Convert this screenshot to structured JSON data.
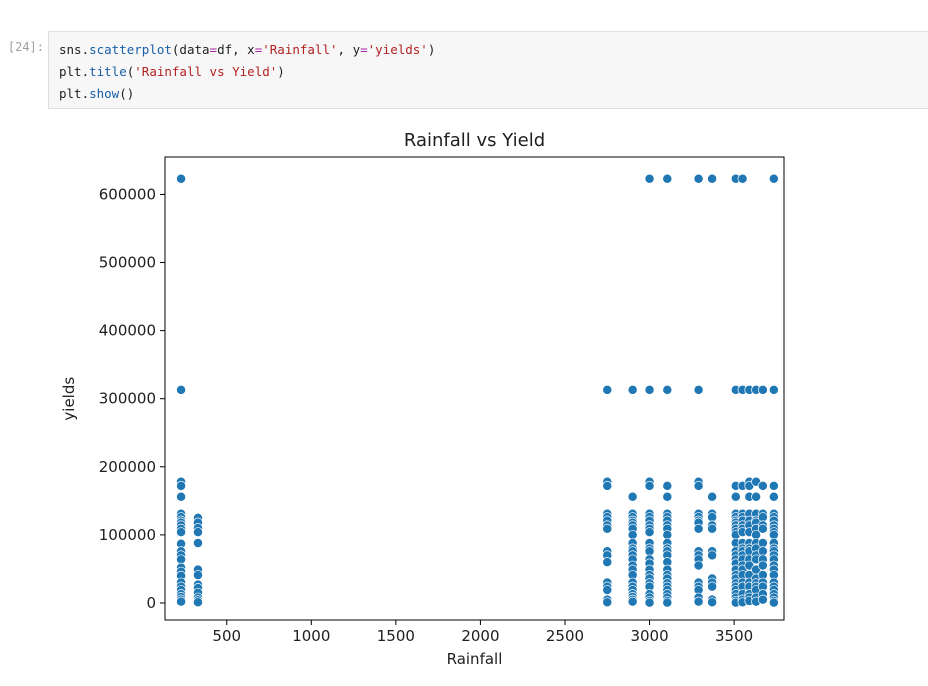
{
  "notebook": {
    "prompt": "[24]:",
    "code_lines": [
      [
        {
          "t": "sns.",
          "c": "plain"
        },
        {
          "t": "scatterplot",
          "c": "fn"
        },
        {
          "t": "(data",
          "c": "plain"
        },
        {
          "t": "=",
          "c": "op"
        },
        {
          "t": "df, x",
          "c": "plain"
        },
        {
          "t": "=",
          "c": "op"
        },
        {
          "t": "'Rainfall'",
          "c": "str"
        },
        {
          "t": ", y",
          "c": "plain"
        },
        {
          "t": "=",
          "c": "op"
        },
        {
          "t": "'yields'",
          "c": "str"
        },
        {
          "t": ")",
          "c": "plain"
        }
      ],
      [
        {
          "t": "plt.",
          "c": "plain"
        },
        {
          "t": "title",
          "c": "fn"
        },
        {
          "t": "(",
          "c": "plain"
        },
        {
          "t": "'Rainfall vs Yield'",
          "c": "str"
        },
        {
          "t": ")",
          "c": "plain"
        }
      ],
      [
        {
          "t": "plt.",
          "c": "plain"
        },
        {
          "t": "show",
          "c": "fn"
        },
        {
          "t": "()",
          "c": "plain"
        }
      ]
    ],
    "colors": {
      "cell_background": "#f7f7f7",
      "function": "#1a5fa8",
      "string": "#b22222",
      "operator": "#a626a4",
      "marker": "#1f77b4"
    }
  },
  "chart_data": {
    "type": "scatter",
    "title": "Rainfall vs Yield",
    "xlabel": "Rainfall",
    "ylabel": "yields",
    "xlim": [
      135,
      3795
    ],
    "ylim": [
      -25000,
      655000
    ],
    "xticks": [
      500,
      1000,
      1500,
      2000,
      2500,
      3000,
      3500
    ],
    "yticks": [
      0,
      100000,
      200000,
      300000,
      400000,
      500000,
      600000
    ],
    "grid": false,
    "legend": "none",
    "clusters": [
      {
        "x": 230,
        "ys": [
          623000,
          313000,
          178000,
          172000,
          156000,
          131000,
          126000,
          121000,
          118000,
          114000,
          109000,
          104000,
          87000,
          76000,
          70000,
          64000,
          52000,
          46000,
          40000,
          30000,
          24000,
          19000,
          13000,
          9000,
          5000,
          2000
        ]
      },
      {
        "x": 330,
        "ys": [
          125000,
          118000,
          110000,
          104000,
          88000,
          49000,
          41000,
          27000,
          22000,
          15000,
          8000,
          4000,
          1000
        ]
      },
      {
        "x": 2750,
        "ys": [
          313000,
          178000,
          172000,
          131000,
          126000,
          121000,
          114000,
          109000,
          76000,
          70000,
          60000,
          30000,
          24000,
          19000,
          5000,
          1000
        ]
      },
      {
        "x": 2900,
        "ys": [
          313000,
          156000,
          131000,
          126000,
          121000,
          118000,
          114000,
          109000,
          100000,
          88000,
          80000,
          76000,
          70000,
          64000,
          55000,
          49000,
          41000,
          30000,
          24000,
          19000,
          13000,
          9000,
          5000,
          2000
        ]
      },
      {
        "x": 3000,
        "ys": [
          623000,
          313000,
          178000,
          172000,
          131000,
          126000,
          121000,
          114000,
          109000,
          104000,
          88000,
          80000,
          76000,
          64000,
          58000,
          49000,
          41000,
          36000,
          29000,
          24000,
          13000,
          8000,
          3000,
          500
        ]
      },
      {
        "x": 3105,
        "ys": [
          623000,
          313000,
          172000,
          156000,
          131000,
          126000,
          121000,
          114000,
          109000,
          100000,
          88000,
          80000,
          76000,
          70000,
          60000,
          49000,
          41000,
          36000,
          29000,
          24000,
          19000,
          13000,
          8000,
          3000,
          500
        ]
      },
      {
        "x": 3290,
        "ys": [
          623000,
          313000,
          178000,
          172000,
          131000,
          126000,
          121000,
          118000,
          109000,
          76000,
          70000,
          64000,
          55000,
          30000,
          24000,
          19000,
          8000,
          2000
        ]
      },
      {
        "x": 3370,
        "ys": [
          623000,
          156000,
          131000,
          126000,
          114000,
          109000,
          76000,
          70000,
          36000,
          30000,
          24000,
          5000,
          1000
        ]
      },
      {
        "x": 3510,
        "ys": [
          623000,
          313000,
          172000,
          156000,
          131000,
          126000,
          121000,
          118000,
          114000,
          109000,
          104000,
          100000,
          88000,
          76000,
          70000,
          64000,
          58000,
          49000,
          41000,
          36000,
          29000,
          24000,
          19000,
          13000,
          8000,
          3000,
          500
        ]
      },
      {
        "x": 3550,
        "ys": [
          623000,
          313000,
          172000,
          131000,
          126000,
          121000,
          114000,
          109000,
          104000,
          88000,
          80000,
          76000,
          70000,
          64000,
          55000,
          49000,
          41000,
          30000,
          24000,
          13000,
          5000,
          1000
        ]
      },
      {
        "x": 3590,
        "ys": [
          313000,
          178000,
          172000,
          156000,
          131000,
          121000,
          114000,
          104000,
          88000,
          80000,
          76000,
          64000,
          55000,
          41000,
          30000,
          24000,
          13000,
          8000,
          3000
        ]
      },
      {
        "x": 3630,
        "ys": [
          313000,
          178000,
          156000,
          131000,
          121000,
          118000,
          109000,
          100000,
          88000,
          80000,
          70000,
          64000,
          49000,
          36000,
          29000,
          24000,
          19000,
          8000,
          2000
        ]
      },
      {
        "x": 3670,
        "ys": [
          313000,
          172000,
          131000,
          126000,
          114000,
          109000,
          88000,
          76000,
          64000,
          55000,
          41000,
          30000,
          24000,
          13000,
          5000
        ]
      },
      {
        "x": 3735,
        "ys": [
          623000,
          313000,
          172000,
          156000,
          131000,
          126000,
          121000,
          114000,
          109000,
          104000,
          100000,
          88000,
          80000,
          76000,
          70000,
          64000,
          55000,
          49000,
          41000,
          30000,
          24000,
          19000,
          13000,
          8000,
          3000,
          500
        ]
      }
    ]
  }
}
